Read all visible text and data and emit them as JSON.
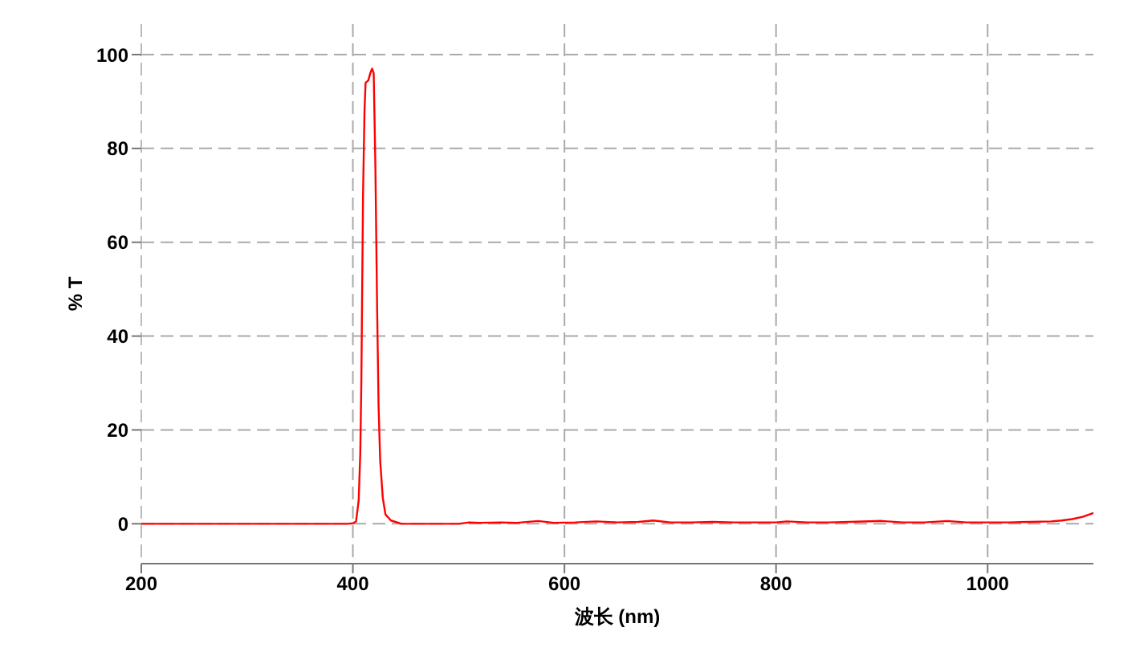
{
  "chart_data": {
    "type": "line",
    "xlabel": "波长 (nm)",
    "ylabel": "% T",
    "x": [
      200,
      300,
      395,
      400,
      403,
      405.5,
      407,
      408,
      409.6,
      411,
      412,
      414.6,
      416.7,
      418.2,
      419.7,
      421.3,
      422.8,
      424.3,
      425.8,
      428.3,
      430.8,
      436,
      446,
      460,
      480,
      500,
      510,
      520,
      540,
      555,
      575,
      590,
      610,
      630,
      650,
      670,
      684,
      700,
      720,
      740,
      760,
      780,
      800,
      810,
      830,
      850,
      870,
      900,
      920,
      940,
      962,
      980,
      1000,
      1020,
      1040,
      1060,
      1070,
      1080,
      1090,
      1100
    ],
    "series": [
      {
        "color": "#ff0000",
        "values": [
          0,
          0,
          0,
          0.1,
          0.5,
          5,
          15,
          30,
          70,
          88,
          94,
          94.5,
          96.2,
          97,
          96,
          76,
          48,
          25,
          13.5,
          5.5,
          2,
          0.7,
          0,
          0,
          0,
          0,
          0.3,
          0.2,
          0.3,
          0.2,
          0.6,
          0.2,
          0.3,
          0.5,
          0.3,
          0.4,
          0.7,
          0.3,
          0.3,
          0.4,
          0.3,
          0.3,
          0.3,
          0.5,
          0.3,
          0.3,
          0.4,
          0.6,
          0.3,
          0.3,
          0.6,
          0.3,
          0.3,
          0.3,
          0.4,
          0.5,
          0.7,
          1.0,
          1.5,
          2.3
        ]
      }
    ],
    "xlim": [
      200,
      1100
    ],
    "ylim": [
      -8.5,
      106.5
    ],
    "xticks": [
      200,
      400,
      600,
      800,
      1000
    ],
    "yticks": [
      0,
      20,
      40,
      60,
      80,
      100
    ],
    "grid": true,
    "marker": "none",
    "line_style": "solid"
  }
}
